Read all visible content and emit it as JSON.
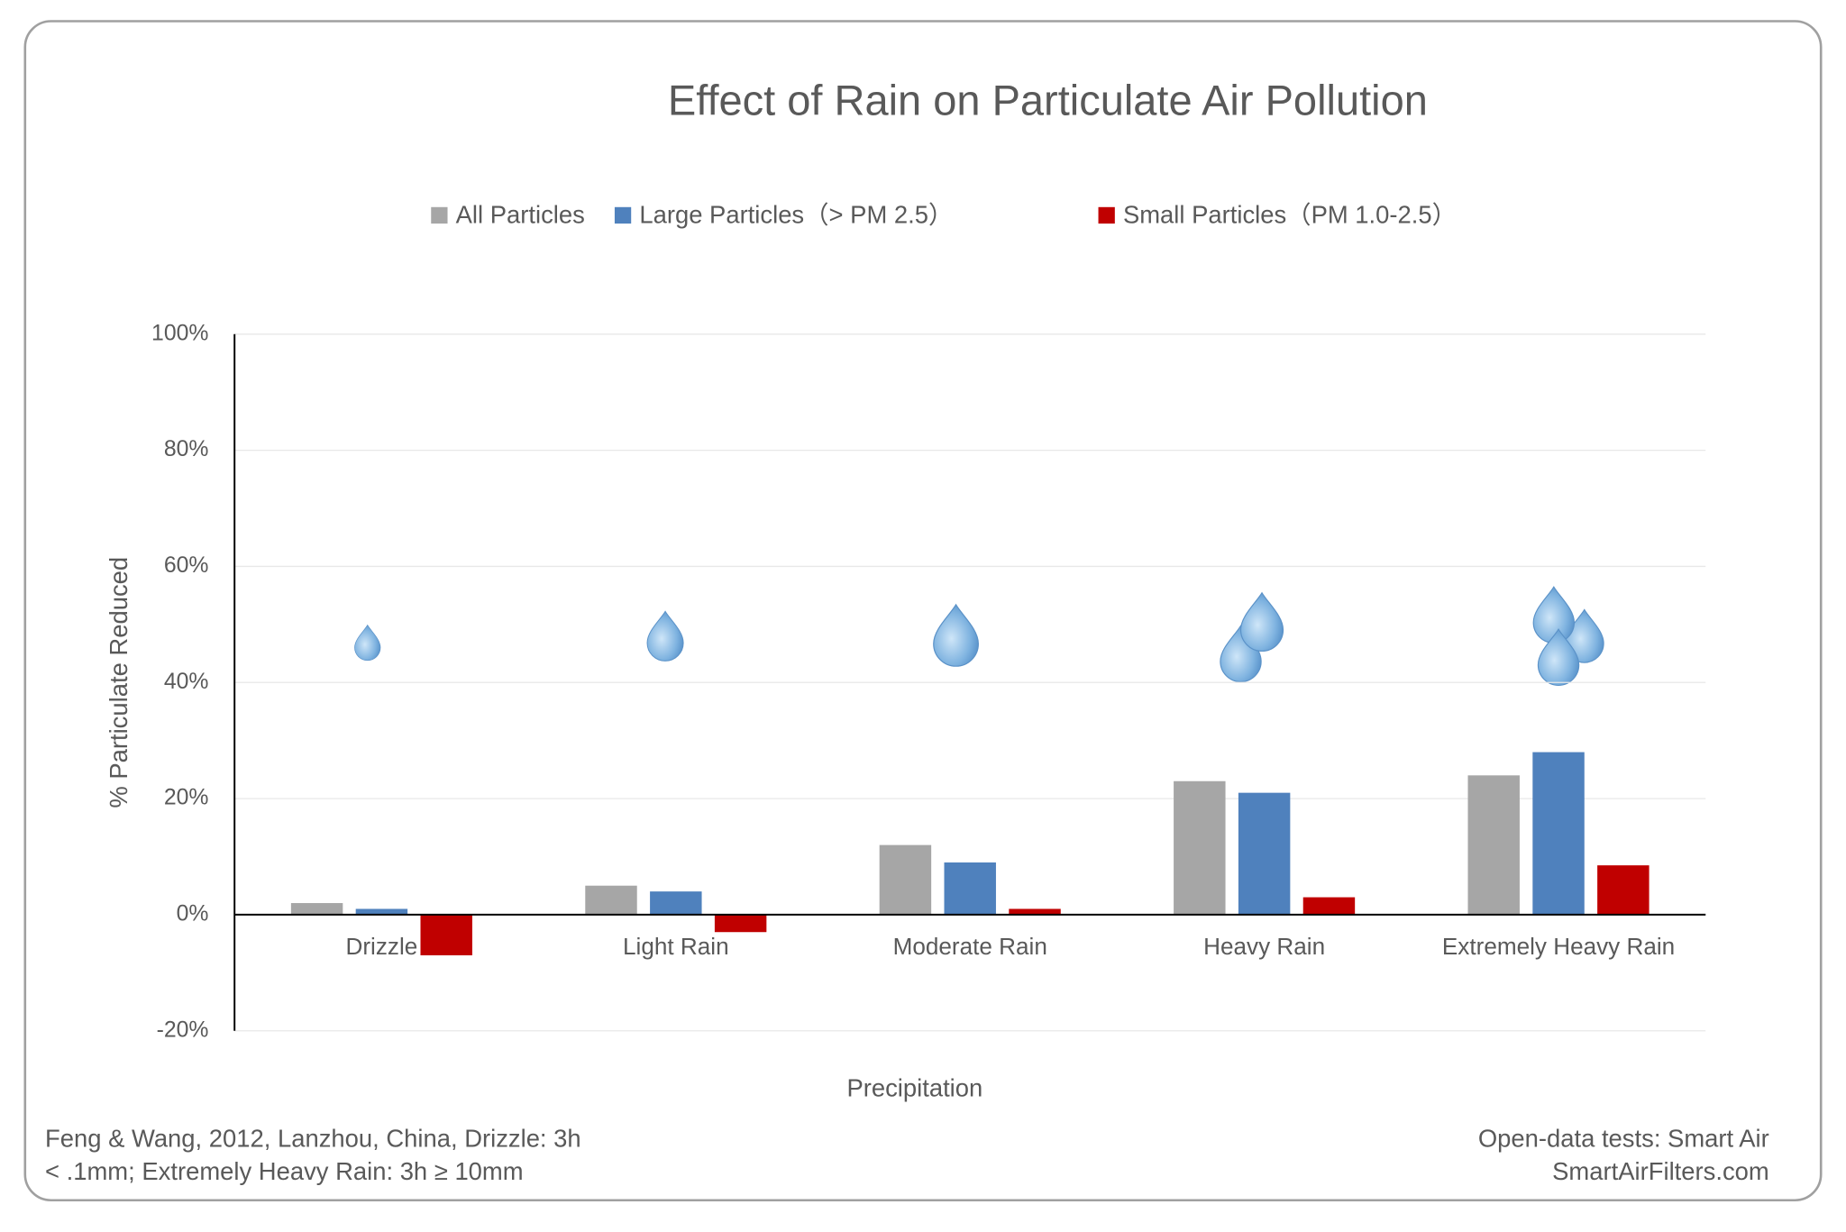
{
  "chart_data": {
    "type": "bar",
    "title": "Effect of Rain on Particulate Air Pollution",
    "x_label": "Precipitation",
    "y_label": "% Particulate Reduced",
    "categories": [
      "Drizzle",
      "Light Rain",
      "Moderate Rain",
      "Heavy Rain",
      "Extremely Heavy Rain"
    ],
    "series": [
      {
        "name": "All Particles",
        "color": "#a6a6a6",
        "values": [
          2,
          5,
          12,
          23,
          24
        ]
      },
      {
        "name": "Large Particles（> PM 2.5）",
        "color": "#4f81bd",
        "values": [
          1,
          4,
          9,
          21,
          28
        ]
      },
      {
        "name": "Small Particles（PM 1.0-2.5）",
        "color": "#c00000",
        "values": [
          -7,
          -3,
          1,
          3,
          8.5
        ]
      }
    ],
    "ylim": [
      -20,
      100
    ],
    "yticks": [
      {
        "value": -20,
        "label": "-20%"
      },
      {
        "value": 0,
        "label": "0%"
      },
      {
        "value": 20,
        "label": "20%"
      },
      {
        "value": 40,
        "label": "40%"
      },
      {
        "value": 60,
        "label": "60%"
      },
      {
        "value": 80,
        "label": "80%"
      },
      {
        "value": 100,
        "label": "100%"
      }
    ],
    "grid": true,
    "legend": "top",
    "footnote_left": [
      "Feng & Wang, 2012, Lanzhou, China, Drizzle: 3h",
      "< .1mm; Extremely Heavy Rain: 3h ≥ 10mm"
    ],
    "footnote_right": [
      "Open-data tests: Smart Air",
      "SmartAirFilters.com"
    ]
  }
}
